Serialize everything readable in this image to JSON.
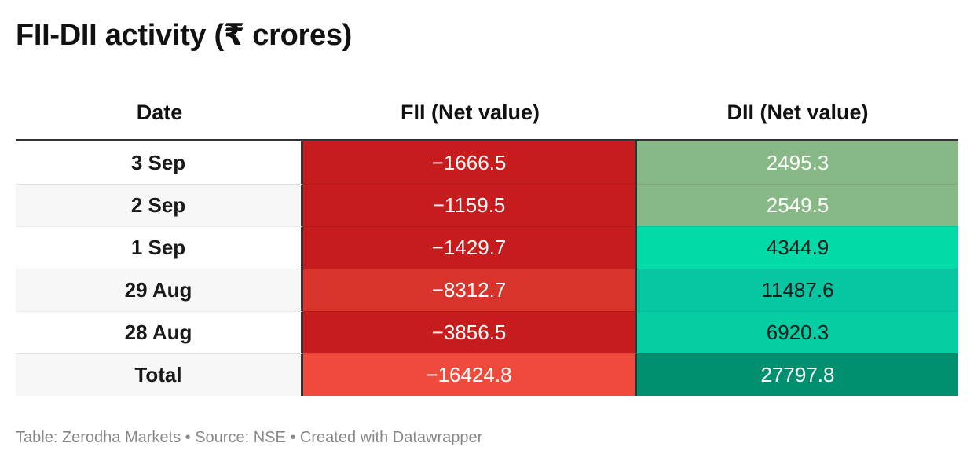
{
  "title": "FII-DII activity (₹ crores)",
  "footer": "Table: Zerodha Markets • Source: NSE • Created with Datawrapper",
  "chart_data": {
    "type": "table",
    "title": "FII-DII activity (₹ crores)",
    "columns": [
      "Date",
      "FII (Net value)",
      "DII (Net value)"
    ],
    "rows": [
      {
        "date": "3 Sep",
        "fii": "−1666.5",
        "dii": "2495.3",
        "fii_color": "#c61c1e",
        "dii_color": "#87b885",
        "fii_text": "#ffffff",
        "dii_text": "#ffffff"
      },
      {
        "date": "2 Sep",
        "fii": "−1159.5",
        "dii": "2549.5",
        "fii_color": "#c61c1e",
        "dii_color": "#87b885",
        "fii_text": "#ffffff",
        "dii_text": "#ffffff"
      },
      {
        "date": "1 Sep",
        "fii": "−1429.7",
        "dii": "4344.9",
        "fii_color": "#c61c1e",
        "dii_color": "#02dba8",
        "fii_text": "#ffffff",
        "dii_text": "#1a1a1a"
      },
      {
        "date": "29 Aug",
        "fii": "−8312.7",
        "dii": "11487.6",
        "fii_color": "#d8342c",
        "dii_color": "#06c7a2",
        "fii_text": "#ffffff",
        "dii_text": "#1a1a1a"
      },
      {
        "date": "28 Aug",
        "fii": "−3856.5",
        "dii": "6920.3",
        "fii_color": "#c61c1e",
        "dii_color": "#05cea5",
        "fii_text": "#ffffff",
        "dii_text": "#1a1a1a"
      },
      {
        "date": "Total",
        "fii": "−16424.8",
        "dii": "27797.8",
        "fii_color": "#ef4a3c",
        "dii_color": "#00906f",
        "fii_text": "#ffffff",
        "dii_text": "#ffffff"
      }
    ]
  }
}
